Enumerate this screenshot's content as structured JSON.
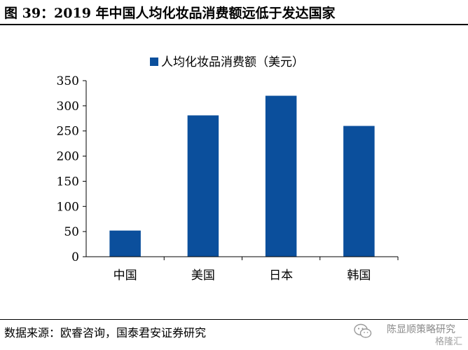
{
  "header": {
    "figure_title": "图 39：2019 年中国人均化妆品消费额远低于发达国家"
  },
  "footer": {
    "source": "数据来源：欧睿咨询，国泰君安证券研究",
    "watermark": "陈显顺策略研究",
    "watermark_sub": "格隆汇",
    "wechat_icon": "wechat-icon"
  },
  "colors": {
    "bar": "#0b4f9c",
    "axis": "#000000"
  },
  "chart_data": {
    "type": "bar",
    "categories": [
      "中国",
      "美国",
      "日本",
      "韩国"
    ],
    "series": [
      {
        "name": "人均化妆品消费额（美元）",
        "values": [
          52,
          281,
          320,
          260
        ]
      }
    ],
    "ylim": [
      0,
      350
    ],
    "yticks": [
      0,
      50,
      100,
      150,
      200,
      250,
      300,
      350
    ],
    "legend_position": "top-center",
    "grid": false
  }
}
